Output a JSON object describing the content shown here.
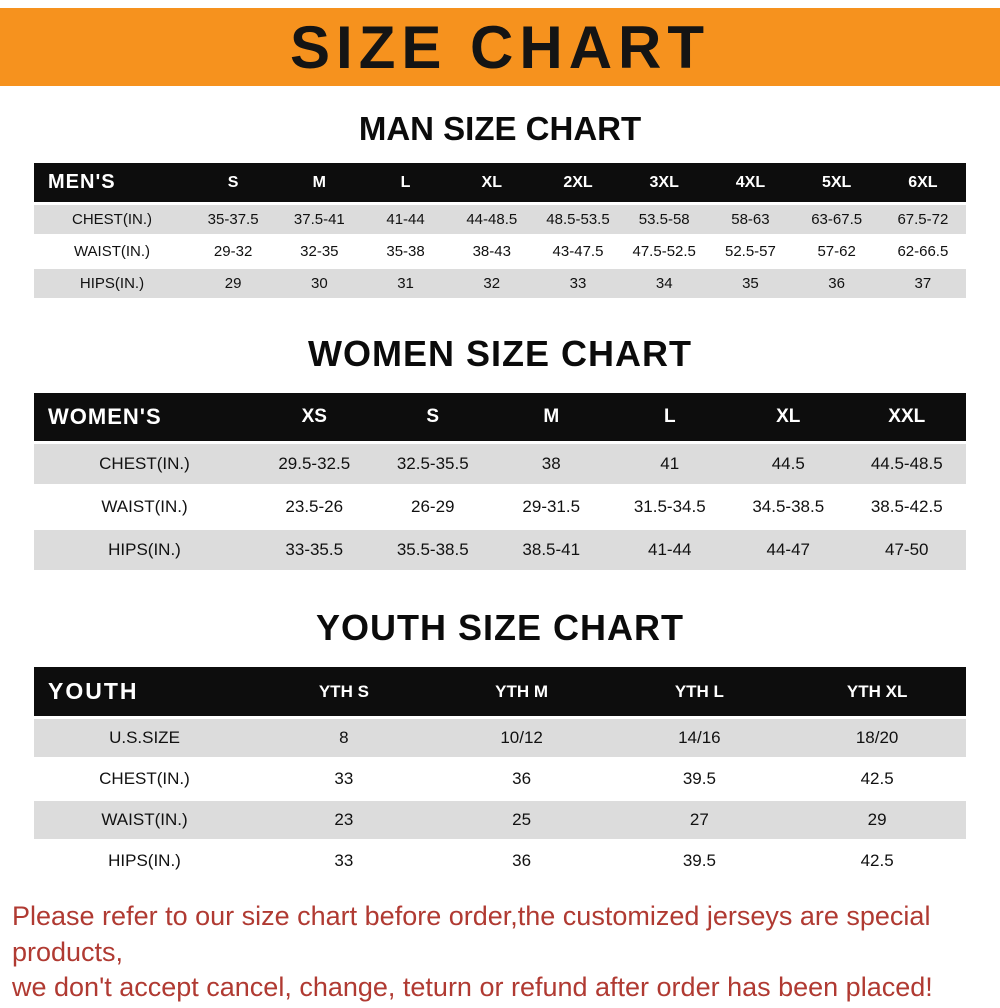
{
  "colors": {
    "banner_bg": "#f6921e",
    "header_row_bg": "#0d0d0d",
    "stripe_bg": "#dcdcdc",
    "footer_text": "#b03a32"
  },
  "banner": {
    "title": "SIZE CHART"
  },
  "sections": [
    {
      "heading": "MAN SIZE CHART",
      "table": {
        "header_label": "MEN'S",
        "columns": [
          "S",
          "M",
          "L",
          "XL",
          "2XL",
          "3XL",
          "4XL",
          "5XL",
          "6XL"
        ],
        "rows": [
          {
            "label": "CHEST(IN.)",
            "values": [
              "35-37.5",
              "37.5-41",
              "41-44",
              "44-48.5",
              "48.5-53.5",
              "53.5-58",
              "58-63",
              "63-67.5",
              "67.5-72"
            ]
          },
          {
            "label": "WAIST(IN.)",
            "values": [
              "29-32",
              "32-35",
              "35-38",
              "38-43",
              "43-47.5",
              "47.5-52.5",
              "52.5-57",
              "57-62",
              "62-66.5"
            ]
          },
          {
            "label": "HIPS(IN.)",
            "values": [
              "29",
              "30",
              "31",
              "32",
              "33",
              "34",
              "35",
              "36",
              "37"
            ]
          }
        ]
      }
    },
    {
      "heading": "WOMEN SIZE CHART",
      "table": {
        "header_label": "WOMEN'S",
        "columns": [
          "XS",
          "S",
          "M",
          "L",
          "XL",
          "XXL"
        ],
        "rows": [
          {
            "label": "CHEST(IN.)",
            "values": [
              "29.5-32.5",
              "32.5-35.5",
              "38",
              "41",
              "44.5",
              "44.5-48.5"
            ]
          },
          {
            "label": "WAIST(IN.)",
            "values": [
              "23.5-26",
              "26-29",
              "29-31.5",
              "31.5-34.5",
              "34.5-38.5",
              "38.5-42.5"
            ]
          },
          {
            "label": "HIPS(IN.)",
            "values": [
              "33-35.5",
              "35.5-38.5",
              "38.5-41",
              "41-44",
              "44-47",
              "47-50"
            ]
          }
        ]
      }
    },
    {
      "heading": "YOUTH SIZE CHART",
      "table": {
        "header_label": "YOUTH",
        "columns": [
          "YTH S",
          "YTH M",
          "YTH L",
          "YTH XL"
        ],
        "rows": [
          {
            "label": "U.S.SIZE",
            "values": [
              "8",
              "10/12",
              "14/16",
              "18/20"
            ]
          },
          {
            "label": "CHEST(IN.)",
            "values": [
              "33",
              "36",
              "39.5",
              "42.5"
            ]
          },
          {
            "label": "WAIST(IN.)",
            "values": [
              "23",
              "25",
              "27",
              "29"
            ]
          },
          {
            "label": "HIPS(IN.)",
            "values": [
              "33",
              "36",
              "39.5",
              "42.5"
            ]
          }
        ]
      }
    }
  ],
  "footer": {
    "line1": "Please refer to our size chart before order,the customized jerseys are special products,",
    "line2": "we don't accept cancel, change, teturn or refund after order has been placed!"
  }
}
